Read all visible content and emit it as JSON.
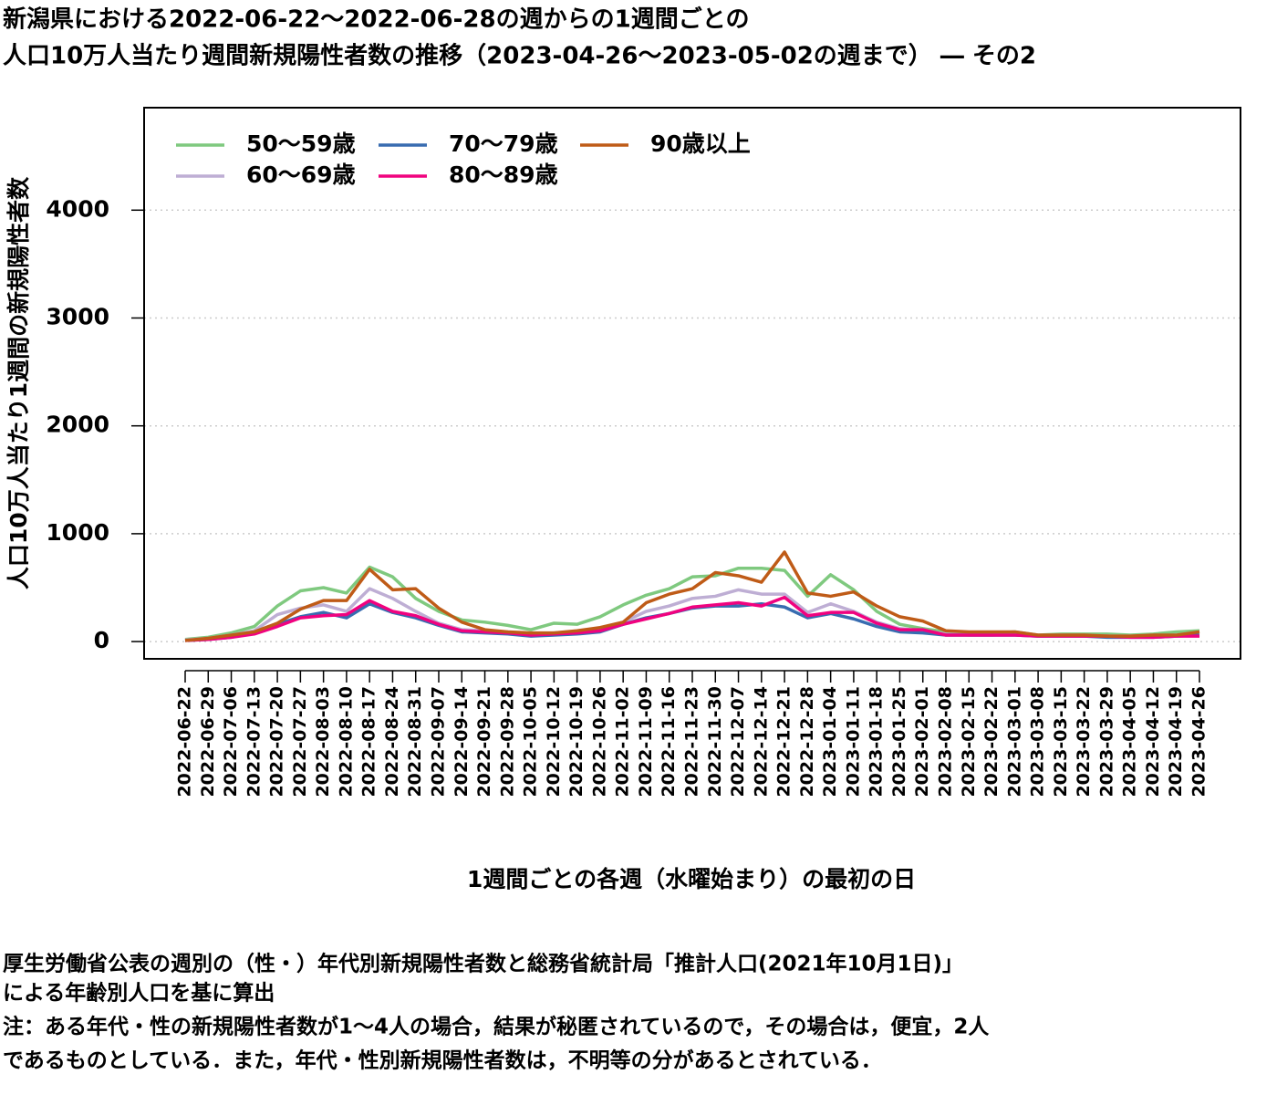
{
  "chart_data": {
    "type": "line",
    "title_lines": [
      "新潟県における2022-06-22～2022-06-28の週からの1週間ごとの",
      "人口10万人当たり週間新規陽性者数の推移（2023-04-26～2023-05-02の週まで） ― その2"
    ],
    "y_label": "人口10万人当たり1週間の新規陽性者数",
    "x_label": "1週間ごとの各週（水曜始まり）の最初の日",
    "notes": [
      "厚生労働省公表の週別の（性・）年代別新規陽性者数と総務省統計局「推計人口(2021年10月1日)」",
      "による年齢別人口を基に算出",
      "注：ある年代・性の新規陽性者数が1～4人の場合，結果が秘匿されているので，その場合は，便宜，2人",
      "であるものとしている．また，年代・性別新規陽性者数は，不明等の分があるとされている．"
    ],
    "categories": [
      "2022-06-22",
      "2022-06-29",
      "2022-07-06",
      "2022-07-13",
      "2022-07-20",
      "2022-07-27",
      "2022-08-03",
      "2022-08-10",
      "2022-08-17",
      "2022-08-24",
      "2022-08-31",
      "2022-09-07",
      "2022-09-14",
      "2022-09-21",
      "2022-09-28",
      "2022-10-05",
      "2022-10-12",
      "2022-10-19",
      "2022-10-26",
      "2022-11-02",
      "2022-11-09",
      "2022-11-16",
      "2022-11-23",
      "2022-11-30",
      "2022-12-07",
      "2022-12-14",
      "2022-12-21",
      "2022-12-28",
      "2023-01-04",
      "2023-01-11",
      "2023-01-18",
      "2023-01-25",
      "2023-02-01",
      "2023-02-08",
      "2023-02-15",
      "2023-02-22",
      "2023-03-01",
      "2023-03-08",
      "2023-03-15",
      "2023-03-22",
      "2023-03-29",
      "2023-04-05",
      "2023-04-12",
      "2023-04-19",
      "2023-04-26"
    ],
    "series": [
      {
        "name": "50～59歳",
        "color": "#7FC97F",
        "values": [
          20,
          40,
          80,
          140,
          330,
          470,
          500,
          450,
          690,
          600,
          400,
          280,
          200,
          180,
          150,
          110,
          170,
          160,
          230,
          340,
          430,
          490,
          600,
          610,
          680,
          680,
          660,
          420,
          620,
          480,
          280,
          160,
          120,
          90,
          80,
          80,
          90,
          60,
          70,
          70,
          70,
          60,
          70,
          90,
          100
        ]
      },
      {
        "name": "60～69歳",
        "color": "#BEAED4",
        "values": [
          15,
          30,
          60,
          100,
          250,
          310,
          340,
          280,
          490,
          400,
          280,
          170,
          110,
          100,
          90,
          70,
          80,
          90,
          120,
          180,
          280,
          330,
          400,
          420,
          480,
          440,
          440,
          270,
          350,
          280,
          180,
          120,
          100,
          70,
          60,
          60,
          70,
          50,
          60,
          50,
          50,
          50,
          50,
          60,
          70
        ]
      },
      {
        "name": "70～79歳",
        "color": "#386CB0",
        "values": [
          10,
          20,
          40,
          80,
          160,
          230,
          270,
          220,
          350,
          270,
          220,
          150,
          90,
          80,
          70,
          50,
          60,
          70,
          90,
          160,
          220,
          260,
          310,
          330,
          330,
          350,
          320,
          220,
          260,
          210,
          140,
          90,
          80,
          60,
          60,
          60,
          60,
          50,
          50,
          50,
          40,
          40,
          40,
          50,
          60
        ]
      },
      {
        "name": "80～89歳",
        "color": "#F0027F",
        "values": [
          10,
          20,
          40,
          70,
          140,
          220,
          240,
          250,
          380,
          280,
          240,
          160,
          100,
          90,
          80,
          60,
          70,
          80,
          100,
          160,
          210,
          260,
          320,
          340,
          360,
          330,
          410,
          240,
          270,
          270,
          170,
          110,
          110,
          60,
          60,
          60,
          60,
          50,
          50,
          50,
          50,
          40,
          40,
          50,
          50
        ]
      },
      {
        "name": "90歳以上",
        "color": "#BF5B17",
        "values": [
          10,
          30,
          60,
          90,
          170,
          300,
          380,
          380,
          670,
          480,
          490,
          310,
          180,
          110,
          90,
          80,
          80,
          100,
          130,
          180,
          360,
          440,
          490,
          640,
          610,
          550,
          830,
          450,
          420,
          460,
          330,
          230,
          190,
          100,
          90,
          90,
          90,
          60,
          60,
          60,
          50,
          50,
          60,
          60,
          90
        ]
      }
    ],
    "ylim": [
      -160,
      4950
    ],
    "yticks": [
      0,
      1000,
      2000,
      3000,
      4000
    ],
    "grid": true,
    "legend": "top-left"
  }
}
